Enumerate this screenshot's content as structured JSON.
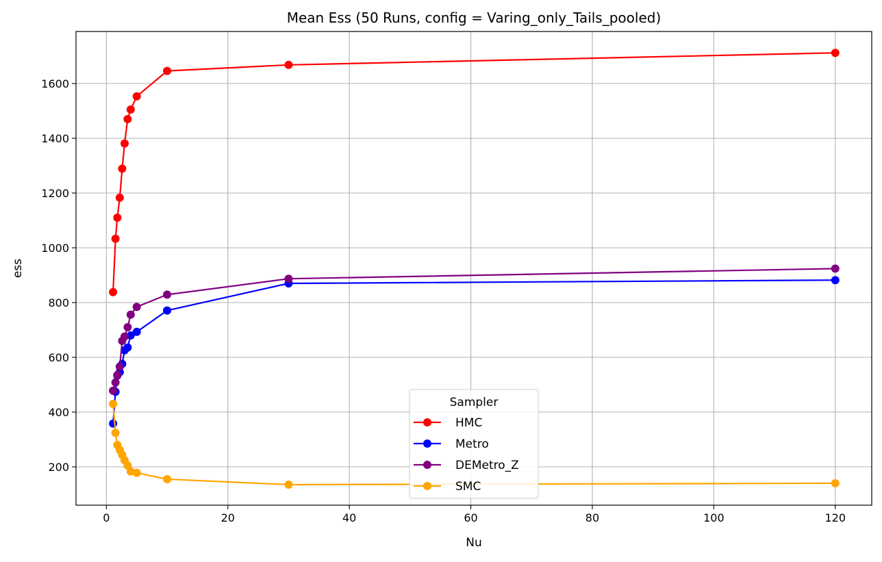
{
  "chart_data": {
    "type": "line",
    "title": "Mean Ess (50 Runs, config = Varing_only_Tails_pooled)",
    "xlabel": "Nu",
    "ylabel": "ess",
    "xlim": [
      -5,
      126
    ],
    "ylim": [
      60,
      1790
    ],
    "xticks": [
      0,
      20,
      40,
      60,
      80,
      100,
      120
    ],
    "yticks": [
      200,
      400,
      600,
      800,
      1000,
      1200,
      1400,
      1600
    ],
    "grid": true,
    "legend": {
      "title": "Sampler",
      "placement": "lower-center"
    },
    "x": [
      1.1,
      1.5,
      1.8,
      2.2,
      2.6,
      3.0,
      3.5,
      4.0,
      5.0,
      10.0,
      30.0,
      120.0
    ],
    "series": [
      {
        "name": "HMC",
        "color": "#ff0000",
        "values": [
          838,
          1033,
          1110,
          1183,
          1289,
          1381,
          1470,
          1505,
          1553,
          1646,
          1668,
          1712
        ]
      },
      {
        "name": "Metro",
        "color": "#0000ff",
        "values": [
          358,
          474,
          533,
          546,
          576,
          626,
          636,
          680,
          693,
          771,
          870,
          882
        ]
      },
      {
        "name": "DEMetro_Z",
        "color": "#800080",
        "values": [
          478,
          508,
          535,
          566,
          660,
          676,
          710,
          756,
          784,
          829,
          887,
          924
        ]
      },
      {
        "name": "SMC",
        "color": "#ffa500",
        "values": [
          430,
          324,
          280,
          262,
          244,
          224,
          205,
          183,
          178,
          155,
          135,
          140
        ]
      }
    ]
  }
}
